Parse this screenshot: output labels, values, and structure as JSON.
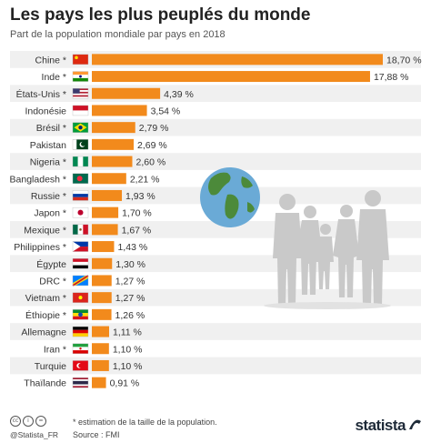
{
  "header": {
    "title": "Les pays les plus peuplés du monde",
    "subtitle": "Part de la population mondiale par pays en 2018"
  },
  "footer": {
    "note": "* estimation de la taille de la population.",
    "source": "Source : FMI",
    "handle": "@Statista_FR",
    "brand": "statista",
    "license_icons": [
      "cc",
      "i",
      "="
    ]
  },
  "colors": {
    "bar": "#f28a1c",
    "row_shade": "#f0f0f0",
    "silhouette": "#c9c9c9",
    "ocean": "#6aaad6",
    "land": "#4c8a3a"
  },
  "chart_data": {
    "type": "bar",
    "orientation": "horizontal",
    "title": "Les pays les plus peuplés du monde",
    "subtitle": "Part de la population mondiale par pays en 2018",
    "categories": [
      "Chine *",
      "Inde *",
      "États-Unis *",
      "Indonésie",
      "Brésil *",
      "Pakistan",
      "Nigeria *",
      "Bangladesh *",
      "Russie *",
      "Japon *",
      "Mexique *",
      "Philippines *",
      "Égypte",
      "DRC *",
      "Vietnam *",
      "Éthiopie *",
      "Allemagne",
      "Iran *",
      "Turquie",
      "Thaïlande"
    ],
    "values": [
      18.7,
      17.88,
      4.39,
      3.54,
      2.79,
      2.69,
      2.6,
      2.21,
      1.93,
      1.7,
      1.67,
      1.43,
      1.3,
      1.27,
      1.27,
      1.26,
      1.11,
      1.1,
      1.1,
      0.91
    ],
    "value_labels": [
      "18,70 %",
      "17,88 %",
      "4,39 %",
      "3,54 %",
      "2,79 %",
      "2,69 %",
      "2,60 %",
      "2,21 %",
      "1,93 %",
      "1,70 %",
      "1,67 %",
      "1,43 %",
      "1,30 %",
      "1,27 %",
      "1,27 %",
      "1,26 %",
      "1,11 %",
      "1,10 %",
      "1,10 %",
      "0,91 %"
    ],
    "flags": [
      "china",
      "india",
      "usa",
      "indonesia",
      "brazil",
      "pakistan",
      "nigeria",
      "bangladesh",
      "russia",
      "japan",
      "mexico",
      "philippines",
      "egypt",
      "drc",
      "vietnam",
      "ethiopia",
      "germany",
      "iran",
      "turkey",
      "thailand"
    ],
    "xlim": [
      0,
      18.7
    ],
    "grid": false,
    "legend": "none"
  }
}
